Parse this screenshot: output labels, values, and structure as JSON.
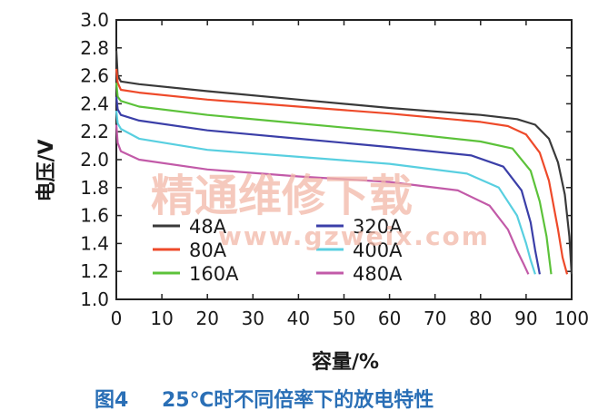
{
  "chart_data": {
    "type": "line",
    "title": "",
    "xlabel": "容量/%",
    "ylabel": "电压/V",
    "xlim": [
      0,
      100
    ],
    "ylim": [
      1.0,
      3.0
    ],
    "xticks": [
      0,
      10,
      20,
      30,
      40,
      50,
      60,
      70,
      80,
      90,
      100
    ],
    "yticks": [
      1.0,
      1.2,
      1.4,
      1.6,
      1.8,
      2.0,
      2.2,
      2.4,
      2.6,
      2.8,
      3.0
    ],
    "ytick_labels": [
      "1.0",
      "1.2",
      "1.4",
      "1.6",
      "1.8",
      "2.0",
      "2.2",
      "2.4",
      "2.6",
      "2.8",
      "3.0"
    ],
    "grid": false,
    "legend_position": "lower-left",
    "series": [
      {
        "name": "48A",
        "color": "#3a3a3a",
        "x": [
          0,
          0.3,
          1,
          5,
          20,
          40,
          60,
          80,
          88,
          92,
          95,
          97,
          98.5,
          99.5,
          100
        ],
        "y": [
          2.78,
          2.6,
          2.56,
          2.54,
          2.49,
          2.43,
          2.37,
          2.32,
          2.29,
          2.25,
          2.15,
          1.98,
          1.75,
          1.45,
          1.18
        ]
      },
      {
        "name": "80A",
        "color": "#ee4a2a",
        "x": [
          0,
          0.3,
          1,
          5,
          20,
          40,
          60,
          80,
          86,
          90,
          93,
          95,
          97,
          98,
          99
        ],
        "y": [
          2.65,
          2.55,
          2.5,
          2.48,
          2.43,
          2.38,
          2.33,
          2.27,
          2.24,
          2.18,
          2.05,
          1.85,
          1.5,
          1.3,
          1.18
        ]
      },
      {
        "name": "160A",
        "color": "#5cc23a",
        "x": [
          0,
          0.3,
          1,
          5,
          20,
          40,
          60,
          80,
          87,
          91,
          93,
          94.5,
          95.5
        ],
        "y": [
          2.55,
          2.45,
          2.42,
          2.38,
          2.32,
          2.26,
          2.2,
          2.13,
          2.08,
          1.92,
          1.7,
          1.45,
          1.18
        ]
      },
      {
        "name": "320A",
        "color": "#3b3fa8",
        "x": [
          0,
          0.3,
          1,
          5,
          20,
          40,
          60,
          78,
          85,
          89,
          91,
          92,
          93
        ],
        "y": [
          2.45,
          2.36,
          2.32,
          2.28,
          2.21,
          2.15,
          2.09,
          2.03,
          1.95,
          1.78,
          1.55,
          1.35,
          1.18
        ]
      },
      {
        "name": "400A",
        "color": "#58cfe0",
        "x": [
          0,
          0.3,
          1,
          5,
          20,
          40,
          60,
          77,
          84,
          88,
          90,
          91,
          92
        ],
        "y": [
          2.35,
          2.26,
          2.22,
          2.15,
          2.07,
          2.02,
          1.97,
          1.9,
          1.8,
          1.6,
          1.4,
          1.28,
          1.18
        ]
      },
      {
        "name": "480A",
        "color": "#c25aa8",
        "x": [
          0,
          0.3,
          1,
          5,
          20,
          40,
          60,
          75,
          82,
          86,
          88,
          89.5,
          90.5
        ],
        "y": [
          2.25,
          2.12,
          2.06,
          2.0,
          1.93,
          1.88,
          1.84,
          1.78,
          1.67,
          1.5,
          1.35,
          1.25,
          1.18
        ]
      }
    ]
  },
  "watermark": {
    "chinese": "精通维修下载",
    "url": "www.gzweix.com"
  },
  "caption": {
    "figure": "图4",
    "text": "25℃时不同倍率下的放电特性"
  }
}
